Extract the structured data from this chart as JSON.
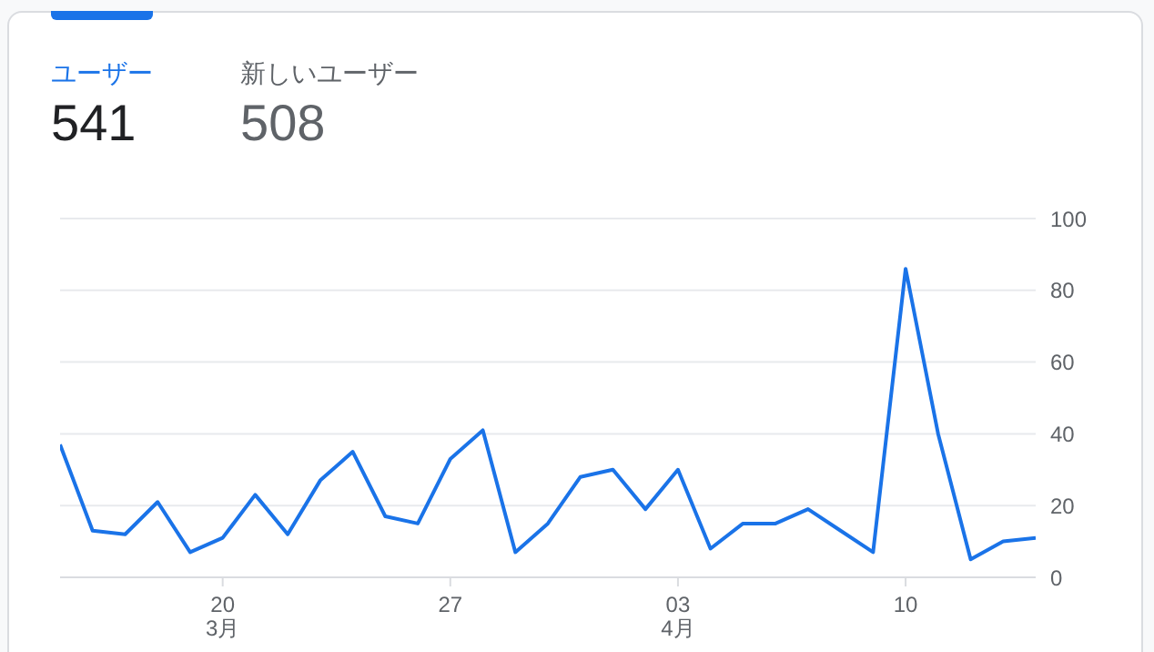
{
  "chart_data": {
    "type": "line",
    "annotations": [
      "ユーザー",
      "541",
      "新しいユーザー",
      "508"
    ],
    "x": [
      "--03-15",
      "--03-16",
      "--03-17",
      "--03-18",
      "--03-19",
      "--03-20",
      "--03-21",
      "--03-22",
      "--03-23",
      "--03-24",
      "--03-25",
      "--03-26",
      "--03-27",
      "--03-28",
      "--03-29",
      "--03-30",
      "--03-31",
      "--04-01",
      "--04-02",
      "--04-03",
      "--04-04",
      "--04-05",
      "--04-06",
      "--04-07",
      "--04-08",
      "--04-09",
      "--04-10",
      "--04-11",
      "--04-12",
      "--04-13",
      "--04-14"
    ],
    "series": [
      {
        "color": "#1a73e8",
        "values": [
          37,
          13,
          12,
          21,
          7,
          11,
          23,
          12,
          27,
          35,
          17,
          15,
          33,
          41,
          7,
          15,
          28,
          30,
          19,
          30,
          8,
          15,
          15,
          19,
          13,
          7,
          86,
          40,
          5,
          10,
          11
        ]
      }
    ],
    "xlim": [
      "--03-15",
      "--04-14"
    ],
    "xticks": [
      {
        "value": "--03-20",
        "label": "20\n3月"
      },
      {
        "value": "--03-27",
        "label": "27"
      },
      {
        "value": "--04-03",
        "label": "03\n4月"
      },
      {
        "value": "--04-10",
        "label": "10"
      }
    ],
    "ylim": [
      0,
      100
    ],
    "yticks": [
      0,
      20,
      40,
      60,
      80,
      100
    ],
    "grid": "y",
    "legend": false,
    "marker": "none",
    "line_style": "solid"
  }
}
